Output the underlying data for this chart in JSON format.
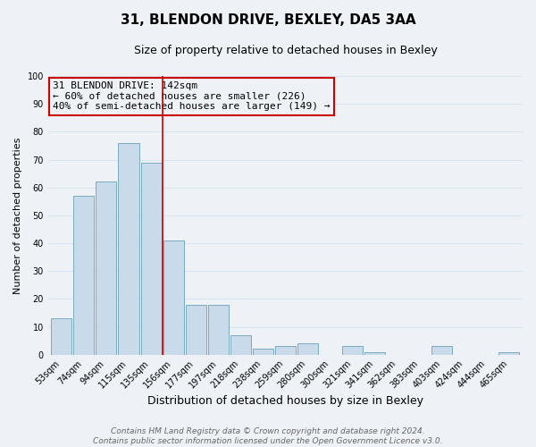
{
  "title": "31, BLENDON DRIVE, BEXLEY, DA5 3AA",
  "subtitle": "Size of property relative to detached houses in Bexley",
  "xlabel": "Distribution of detached houses by size in Bexley",
  "ylabel": "Number of detached properties",
  "bar_labels": [
    "53sqm",
    "74sqm",
    "94sqm",
    "115sqm",
    "135sqm",
    "156sqm",
    "177sqm",
    "197sqm",
    "218sqm",
    "238sqm",
    "259sqm",
    "280sqm",
    "300sqm",
    "321sqm",
    "341sqm",
    "362sqm",
    "383sqm",
    "403sqm",
    "424sqm",
    "444sqm",
    "465sqm"
  ],
  "bar_values": [
    13,
    57,
    62,
    76,
    69,
    41,
    18,
    18,
    7,
    2,
    3,
    4,
    0,
    3,
    1,
    0,
    0,
    3,
    0,
    0,
    1
  ],
  "bar_color": "#c9daea",
  "bar_edge_color": "#7aaabf",
  "ylim": [
    0,
    100
  ],
  "vline_index": 4.5,
  "vline_color": "#cc0000",
  "annotation_title": "31 BLENDON DRIVE: 142sqm",
  "annotation_line1": "← 60% of detached houses are smaller (226)",
  "annotation_line2": "40% of semi-detached houses are larger (149) →",
  "annotation_box_color": "#cc0000",
  "footer_line1": "Contains HM Land Registry data © Crown copyright and database right 2024.",
  "footer_line2": "Contains public sector information licensed under the Open Government Licence v3.0.",
  "background_color": "#eef2f7",
  "grid_color": "#d8e4f0",
  "title_fontsize": 11,
  "subtitle_fontsize": 9,
  "xlabel_fontsize": 9,
  "ylabel_fontsize": 8,
  "tick_fontsize": 7,
  "annotation_fontsize": 8,
  "footer_fontsize": 6.5
}
